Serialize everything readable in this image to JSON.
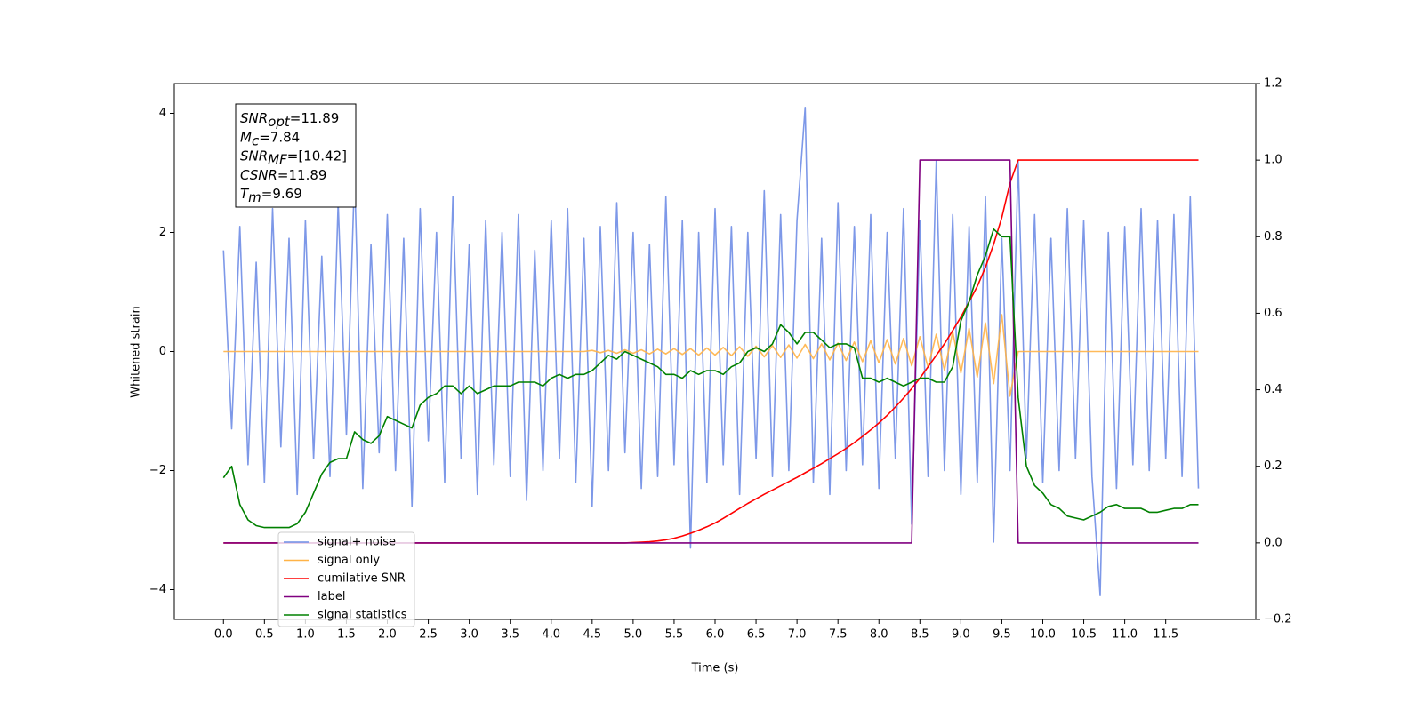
{
  "chart_data": {
    "type": "line",
    "xlabel": "Time (s)",
    "ylabel": "Whitened strain",
    "xlim": [
      -0.6,
      12.6
    ],
    "ylim": [
      -4.5,
      4.5
    ],
    "y2lim": [
      -0.2,
      1.2
    ],
    "xticks": [
      {
        "value": 0,
        "label": "0.0"
      },
      {
        "value": 0.5,
        "label": "0.5"
      },
      {
        "value": 1,
        "label": "1.0"
      },
      {
        "value": 1.5,
        "label": "1.5"
      },
      {
        "value": 2,
        "label": "2.0"
      },
      {
        "value": 2.5,
        "label": "2.5"
      },
      {
        "value": 3,
        "label": "3.0"
      },
      {
        "value": 3.5,
        "label": "3.5"
      },
      {
        "value": 4,
        "label": "4.0"
      },
      {
        "value": 4.5,
        "label": "4.5"
      },
      {
        "value": 5,
        "label": "5.0"
      },
      {
        "value": 5.5,
        "label": "5.5"
      },
      {
        "value": 6,
        "label": "6.0"
      },
      {
        "value": 6.5,
        "label": "6.5"
      },
      {
        "value": 7,
        "label": "7.0"
      },
      {
        "value": 7.5,
        "label": "7.5"
      },
      {
        "value": 8,
        "label": "8.0"
      },
      {
        "value": 8.5,
        "label": "8.5"
      },
      {
        "value": 9,
        "label": "9.0"
      },
      {
        "value": 9.5,
        "label": "9.5"
      },
      {
        "value": 10,
        "label": "10.0"
      },
      {
        "value": 10.5,
        "label": "10.5"
      },
      {
        "value": 11,
        "label": "11.0"
      },
      {
        "value": 11.5,
        "label": "11.5"
      }
    ],
    "yticks": [
      {
        "value": -4,
        "label": "−4"
      },
      {
        "value": -2,
        "label": "−2"
      },
      0,
      2,
      4
    ],
    "y2ticks": [
      {
        "value": -0.2,
        "label": "−0.2"
      },
      {
        "value": 0,
        "label": "0.0"
      },
      {
        "value": 0.2,
        "label": "0.2"
      },
      {
        "value": 0.4,
        "label": "0.4"
      },
      {
        "value": 0.6,
        "label": "0.6"
      },
      {
        "value": 0.8,
        "label": "0.8"
      },
      {
        "value": 1,
        "label": "1.0"
      },
      {
        "value": 1.2,
        "label": "1.2"
      }
    ],
    "legend": "lower left",
    "annotation": [
      {
        "base": "SNR",
        "sub": "opt",
        "text": "=11.89"
      },
      {
        "base": "M",
        "sub": "c",
        "text": "=7.84"
      },
      {
        "base": "SNR",
        "sub": "MF",
        "text": "=[10.42]"
      },
      {
        "base": "CSNR",
        "sub": "",
        "text": "=11.89"
      },
      {
        "base": "T",
        "sub": "m",
        "text": "=9.69"
      }
    ],
    "x": [
      0,
      0.1,
      0.2,
      0.3,
      0.4,
      0.5,
      0.6,
      0.7,
      0.8,
      0.9,
      1,
      1.1,
      1.2,
      1.3,
      1.4,
      1.5,
      1.6,
      1.7,
      1.8,
      1.9,
      2,
      2.1,
      2.2,
      2.3,
      2.4,
      2.5,
      2.6,
      2.7,
      2.8,
      2.9,
      3,
      3.1,
      3.2,
      3.3,
      3.4,
      3.5,
      3.6,
      3.7,
      3.8,
      3.9,
      4,
      4.1,
      4.2,
      4.3,
      4.4,
      4.5,
      4.6,
      4.7,
      4.8,
      4.9,
      5,
      5.1,
      5.2,
      5.3,
      5.4,
      5.5,
      5.6,
      5.7,
      5.8,
      5.9,
      6,
      6.1,
      6.2,
      6.3,
      6.4,
      6.5,
      6.6,
      6.7,
      6.8,
      6.9,
      7,
      7.1,
      7.2,
      7.3,
      7.4,
      7.5,
      7.6,
      7.7,
      7.8,
      7.9,
      8,
      8.1,
      8.2,
      8.3,
      8.4,
      8.5,
      8.6,
      8.7,
      8.8,
      8.9,
      9,
      9.1,
      9.2,
      9.3,
      9.4,
      9.5,
      9.6,
      9.7,
      9.8,
      9.9,
      10,
      10.1,
      10.2,
      10.3,
      10.4,
      10.5,
      10.6,
      10.7,
      10.8,
      10.9,
      11,
      11.1,
      11.2,
      11.3,
      11.4,
      11.5,
      11.6,
      11.7,
      11.8,
      11.9
    ],
    "series": [
      {
        "name": "signal+ noise",
        "color": "#6f8de6",
        "values": [
          1.7,
          -1.3,
          2.1,
          -1.9,
          1.5,
          -2.2,
          2.4,
          -1.6,
          1.9,
          -2.4,
          2.2,
          -1.8,
          1.6,
          -2.1,
          2.5,
          -1.4,
          3.0,
          -2.3,
          1.8,
          -1.7,
          2.3,
          -2.0,
          1.9,
          -2.6,
          2.4,
          -1.5,
          2.0,
          -2.2,
          2.6,
          -1.8,
          1.8,
          -2.4,
          2.2,
          -1.9,
          2.0,
          -2.1,
          2.3,
          -2.5,
          1.7,
          -2.0,
          2.2,
          -1.8,
          2.4,
          -2.2,
          1.9,
          -2.6,
          2.1,
          -2.0,
          2.5,
          -1.7,
          2.0,
          -2.3,
          1.8,
          -2.1,
          2.6,
          -1.9,
          2.2,
          -3.3,
          2.0,
          -2.2,
          2.4,
          -1.9,
          2.1,
          -2.4,
          2.0,
          -1.8,
          2.7,
          -2.1,
          2.3,
          -2.0,
          2.2,
          4.1,
          -2.2,
          1.9,
          -2.4,
          2.5,
          -2.0,
          2.1,
          -1.9,
          2.3,
          -2.3,
          2.0,
          -1.8,
          2.4,
          -2.9,
          2.2,
          -2.1,
          3.2,
          -2.0,
          2.3,
          -2.4,
          2.1,
          -2.2,
          2.6,
          -3.2,
          1.9,
          -2.0,
          3.2,
          -1.8,
          2.3,
          -2.2,
          1.9,
          -2.0,
          2.4,
          -1.8,
          2.2,
          -2.1,
          -4.1,
          2.0,
          -2.3,
          2.1,
          -1.9,
          2.4,
          -2.0,
          2.2,
          -1.8,
          2.3,
          -2.1,
          2.6,
          -2.3
        ]
      },
      {
        "name": "signal only",
        "color": "#ffb347",
        "values": [
          0,
          0,
          0,
          0,
          0,
          0,
          0,
          0,
          0,
          0,
          0,
          0,
          0,
          0,
          0,
          0,
          0,
          0,
          0,
          0,
          0,
          0,
          0,
          0,
          0,
          0,
          0,
          0,
          0,
          0,
          0,
          0,
          0,
          0,
          0,
          0,
          0,
          0,
          0,
          0,
          0,
          0,
          0,
          0,
          0,
          0.02,
          -0.02,
          0.02,
          -0.03,
          0.03,
          -0.03,
          0.03,
          -0.04,
          0.04,
          -0.04,
          0.05,
          -0.05,
          0.05,
          -0.06,
          0.06,
          -0.06,
          0.07,
          -0.07,
          0.08,
          -0.08,
          0.09,
          -0.09,
          0.1,
          -0.1,
          0.11,
          -0.11,
          0.12,
          -0.12,
          0.13,
          -0.14,
          0.14,
          -0.15,
          0.16,
          -0.17,
          0.18,
          -0.19,
          0.2,
          -0.21,
          0.22,
          -0.24,
          0.25,
          -0.27,
          0.29,
          -0.31,
          0.33,
          -0.36,
          0.39,
          -0.43,
          0.48,
          -0.54,
          0.62,
          -0.75,
          0,
          0,
          0,
          0,
          0,
          0,
          0,
          0,
          0,
          0,
          0,
          0,
          0,
          0,
          0,
          0,
          0,
          0,
          0,
          0,
          0,
          0,
          0
        ]
      },
      {
        "name": "cumilative SNR",
        "color": "#ff0000",
        "axis": "y2",
        "values": [
          0,
          0,
          0,
          0,
          0,
          0,
          0,
          0,
          0,
          0,
          0,
          0,
          0,
          0,
          0,
          0,
          0,
          0,
          0,
          0,
          0,
          0,
          0,
          0,
          0,
          0,
          0,
          0,
          0,
          0,
          0,
          0,
          0,
          0,
          0,
          0,
          0,
          0,
          0,
          0,
          0,
          0,
          0,
          0,
          0,
          0,
          0,
          0,
          0,
          0,
          0.001,
          0.002,
          0.003,
          0.005,
          0.008,
          0.012,
          0.018,
          0.025,
          0.033,
          0.042,
          0.052,
          0.064,
          0.077,
          0.09,
          0.103,
          0.115,
          0.127,
          0.138,
          0.149,
          0.16,
          0.171,
          0.183,
          0.195,
          0.207,
          0.22,
          0.233,
          0.247,
          0.262,
          0.278,
          0.295,
          0.313,
          0.333,
          0.355,
          0.378,
          0.403,
          0.43,
          0.46,
          0.49,
          0.52,
          0.555,
          0.59,
          0.63,
          0.67,
          0.72,
          0.78,
          0.85,
          0.94,
          1,
          1,
          1,
          1,
          1,
          1,
          1,
          1,
          1,
          1,
          1,
          1,
          1,
          1,
          1,
          1,
          1,
          1,
          1,
          1,
          1,
          1,
          1
        ]
      },
      {
        "name": "label",
        "color": "#800080",
        "axis": "y2",
        "values": [
          0,
          0,
          0,
          0,
          0,
          0,
          0,
          0,
          0,
          0,
          0,
          0,
          0,
          0,
          0,
          0,
          0,
          0,
          0,
          0,
          0,
          0,
          0,
          0,
          0,
          0,
          0,
          0,
          0,
          0,
          0,
          0,
          0,
          0,
          0,
          0,
          0,
          0,
          0,
          0,
          0,
          0,
          0,
          0,
          0,
          0,
          0,
          0,
          0,
          0,
          0,
          0,
          0,
          0,
          0,
          0,
          0,
          0,
          0,
          0,
          0,
          0,
          0,
          0,
          0,
          0,
          0,
          0,
          0,
          0,
          0,
          0,
          0,
          0,
          0,
          0,
          0,
          0,
          0,
          0,
          0,
          0,
          0,
          0,
          0,
          1,
          1,
          1,
          1,
          1,
          1,
          1,
          1,
          1,
          1,
          1,
          1,
          0,
          0,
          0,
          0,
          0,
          0,
          0,
          0,
          0,
          0,
          0,
          0,
          0,
          0,
          0,
          0,
          0,
          0,
          0,
          0,
          0,
          0,
          0
        ]
      },
      {
        "name": "signal statistics",
        "color": "#008000",
        "axis": "y2",
        "values": [
          0.17,
          0.2,
          0.1,
          0.06,
          0.045,
          0.04,
          0.04,
          0.04,
          0.04,
          0.05,
          0.08,
          0.13,
          0.18,
          0.21,
          0.22,
          0.22,
          0.29,
          0.27,
          0.26,
          0.28,
          0.33,
          0.32,
          0.31,
          0.3,
          0.36,
          0.38,
          0.39,
          0.41,
          0.41,
          0.39,
          0.41,
          0.39,
          0.4,
          0.41,
          0.41,
          0.41,
          0.42,
          0.42,
          0.42,
          0.41,
          0.43,
          0.44,
          0.43,
          0.44,
          0.44,
          0.45,
          0.47,
          0.49,
          0.48,
          0.5,
          0.49,
          0.48,
          0.47,
          0.46,
          0.44,
          0.44,
          0.43,
          0.45,
          0.44,
          0.45,
          0.45,
          0.44,
          0.46,
          0.47,
          0.5,
          0.51,
          0.5,
          0.52,
          0.57,
          0.55,
          0.52,
          0.55,
          0.55,
          0.53,
          0.51,
          0.52,
          0.52,
          0.51,
          0.43,
          0.43,
          0.42,
          0.43,
          0.42,
          0.41,
          0.42,
          0.43,
          0.43,
          0.42,
          0.42,
          0.46,
          0.58,
          0.63,
          0.7,
          0.75,
          0.82,
          0.8,
          0.8,
          0.38,
          0.2,
          0.15,
          0.13,
          0.1,
          0.09,
          0.07,
          0.065,
          0.06,
          0.07,
          0.08,
          0.095,
          0.1,
          0.09,
          0.09,
          0.09,
          0.08,
          0.08,
          0.085,
          0.09,
          0.09,
          0.1,
          0.1
        ]
      }
    ]
  }
}
